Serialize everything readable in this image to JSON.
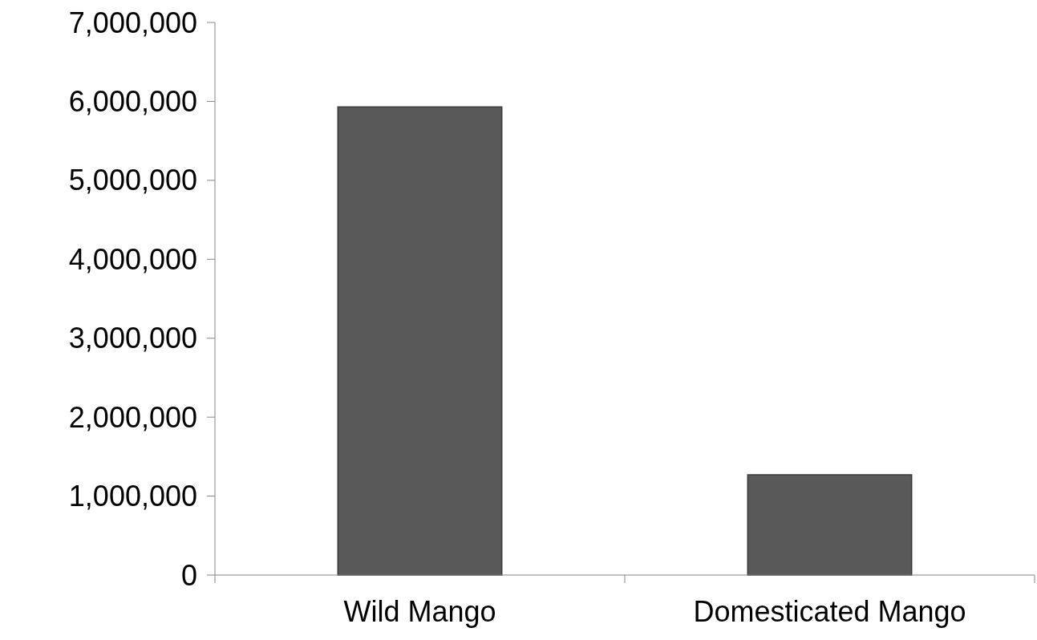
{
  "chart_data": {
    "type": "bar",
    "categories": [
      "Wild Mango",
      "Domesticated Mango"
    ],
    "values": [
      5930000,
      1270000
    ],
    "color": "#595959",
    "ylim": [
      0,
      7000000
    ],
    "yticks": [
      {
        "value": 0,
        "label": "0"
      },
      {
        "value": 1000000,
        "label": "1,000,000"
      },
      {
        "value": 2000000,
        "label": "2,000,000"
      },
      {
        "value": 3000000,
        "label": "3,000,000"
      },
      {
        "value": 4000000,
        "label": "4,000,000"
      },
      {
        "value": 5000000,
        "label": "5,000,000"
      },
      {
        "value": 6000000,
        "label": "6,000,000"
      },
      {
        "value": 7000000,
        "label": "7,000,000"
      }
    ],
    "grid": false
  }
}
